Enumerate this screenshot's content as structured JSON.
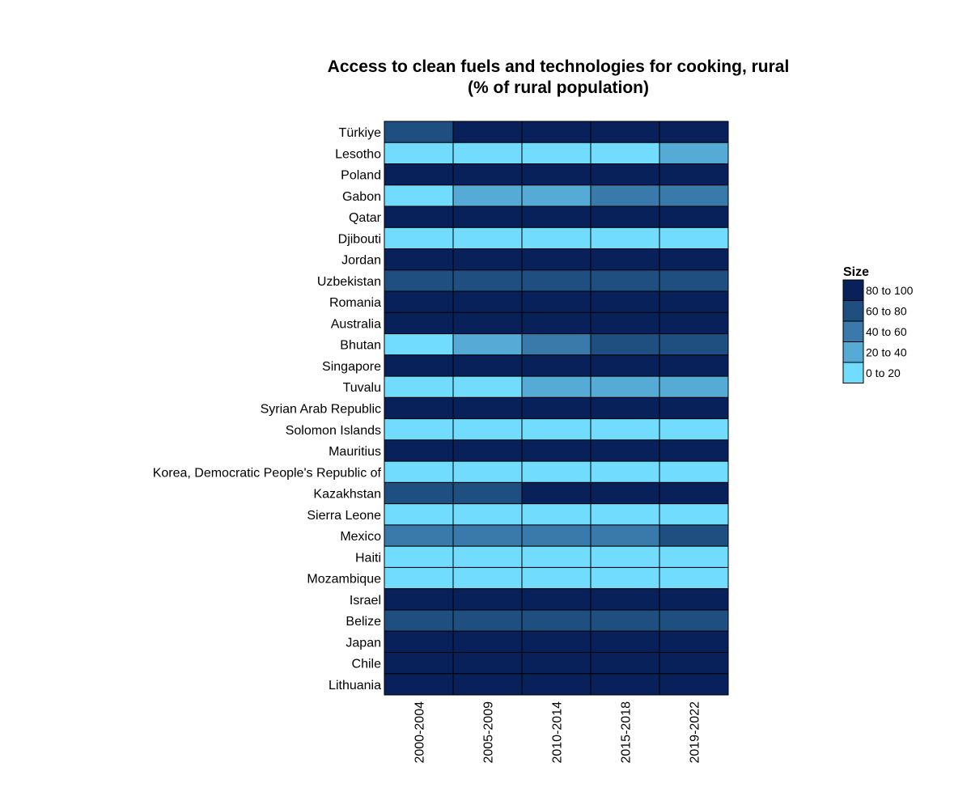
{
  "chart_data": {
    "type": "heatmap",
    "title": "Access to clean fuels and technologies for cooking, rural",
    "subtitle": "(% of rural population)",
    "x_categories": [
      "2000-2004",
      "2005-2009",
      "2010-2014",
      "2015-2018",
      "2019-2022"
    ],
    "y_categories": [
      "Türkiye",
      "Lesotho",
      "Poland",
      "Gabon",
      "Qatar",
      "Djibouti",
      "Jordan",
      "Uzbekistan",
      "Romania",
      "Australia",
      "Bhutan",
      "Singapore",
      "Tuvalu",
      "Syrian Arab Republic",
      "Solomon Islands",
      "Mauritius",
      "Korea, Democratic People's Republic of",
      "Kazakhstan",
      "Sierra Leone",
      "Mexico",
      "Haiti",
      "Mozambique",
      "Israel",
      "Belize",
      "Japan",
      "Chile",
      "Lithuania"
    ],
    "values": [
      [
        "60 to 80",
        "80 to 100",
        "80 to 100",
        "80 to 100",
        "80 to 100"
      ],
      [
        "0 to 20",
        "0 to 20",
        "0 to 20",
        "0 to 20",
        "20 to 40"
      ],
      [
        "80 to 100",
        "80 to 100",
        "80 to 100",
        "80 to 100",
        "80 to 100"
      ],
      [
        "0 to 20",
        "20 to 40",
        "20 to 40",
        "40 to 60",
        "40 to 60"
      ],
      [
        "80 to 100",
        "80 to 100",
        "80 to 100",
        "80 to 100",
        "80 to 100"
      ],
      [
        "0 to 20",
        "0 to 20",
        "0 to 20",
        "0 to 20",
        "0 to 20"
      ],
      [
        "80 to 100",
        "80 to 100",
        "80 to 100",
        "80 to 100",
        "80 to 100"
      ],
      [
        "60 to 80",
        "60 to 80",
        "60 to 80",
        "60 to 80",
        "60 to 80"
      ],
      [
        "80 to 100",
        "80 to 100",
        "80 to 100",
        "80 to 100",
        "80 to 100"
      ],
      [
        "80 to 100",
        "80 to 100",
        "80 to 100",
        "80 to 100",
        "80 to 100"
      ],
      [
        "0 to 20",
        "20 to 40",
        "40 to 60",
        "60 to 80",
        "60 to 80"
      ],
      [
        "80 to 100",
        "80 to 100",
        "80 to 100",
        "80 to 100",
        "80 to 100"
      ],
      [
        "0 to 20",
        "0 to 20",
        "20 to 40",
        "20 to 40",
        "20 to 40"
      ],
      [
        "80 to 100",
        "80 to 100",
        "80 to 100",
        "80 to 100",
        "80 to 100"
      ],
      [
        "0 to 20",
        "0 to 20",
        "0 to 20",
        "0 to 20",
        "0 to 20"
      ],
      [
        "80 to 100",
        "80 to 100",
        "80 to 100",
        "80 to 100",
        "80 to 100"
      ],
      [
        "0 to 20",
        "0 to 20",
        "0 to 20",
        "0 to 20",
        "0 to 20"
      ],
      [
        "60 to 80",
        "60 to 80",
        "80 to 100",
        "80 to 100",
        "80 to 100"
      ],
      [
        "0 to 20",
        "0 to 20",
        "0 to 20",
        "0 to 20",
        "0 to 20"
      ],
      [
        "40 to 60",
        "40 to 60",
        "40 to 60",
        "40 to 60",
        "60 to 80"
      ],
      [
        "0 to 20",
        "0 to 20",
        "0 to 20",
        "0 to 20",
        "0 to 20"
      ],
      [
        "0 to 20",
        "0 to 20",
        "0 to 20",
        "0 to 20",
        "0 to 20"
      ],
      [
        "80 to 100",
        "80 to 100",
        "80 to 100",
        "80 to 100",
        "80 to 100"
      ],
      [
        "60 to 80",
        "60 to 80",
        "60 to 80",
        "60 to 80",
        "60 to 80"
      ],
      [
        "80 to 100",
        "80 to 100",
        "80 to 100",
        "80 to 100",
        "80 to 100"
      ],
      [
        "80 to 100",
        "80 to 100",
        "80 to 100",
        "80 to 100",
        "80 to 100"
      ],
      [
        "80 to 100",
        "80 to 100",
        "80 to 100",
        "80 to 100",
        "80 to 100"
      ]
    ],
    "legend": {
      "title": "Size",
      "placement": "right",
      "entries": [
        {
          "label": "80 to 100",
          "color": "#08215a"
        },
        {
          "label": "60 to 80",
          "color": "#1f4e80"
        },
        {
          "label": "40 to 60",
          "color": "#3a7aab"
        },
        {
          "label": "20 to 40",
          "color": "#56aad6"
        },
        {
          "label": "0 to 20",
          "color": "#72dcfe"
        }
      ]
    },
    "grid": false
  }
}
